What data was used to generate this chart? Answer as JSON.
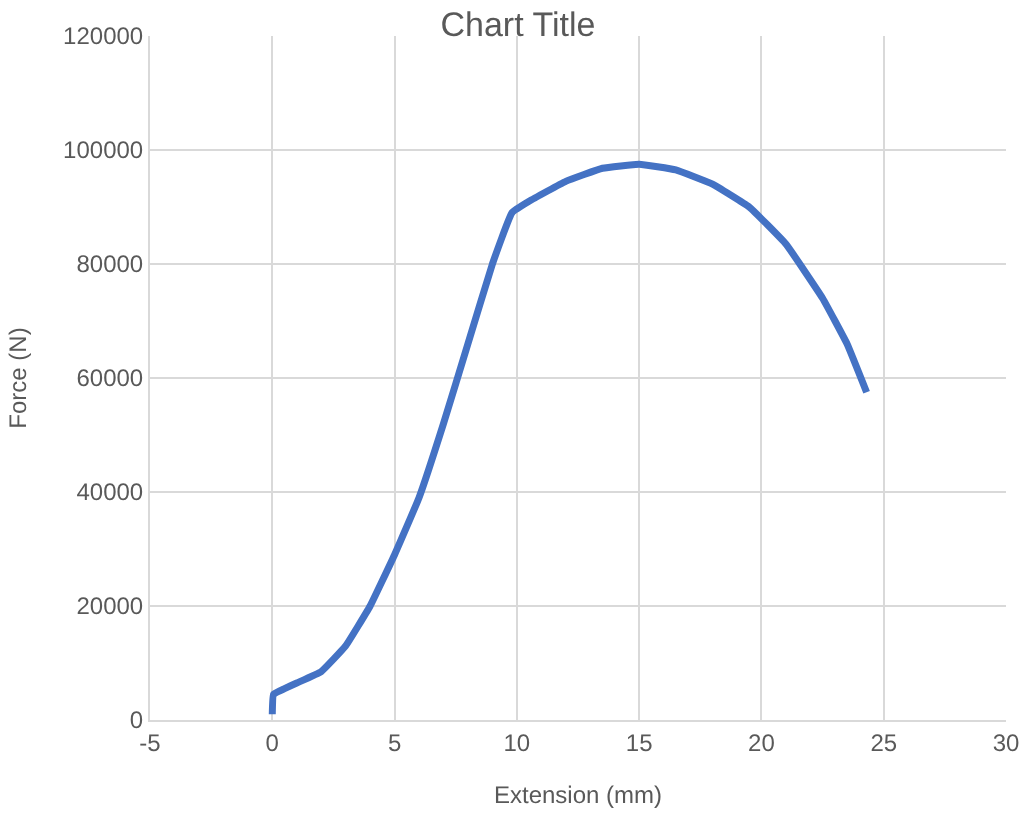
{
  "chart_data": {
    "type": "line",
    "title": "Chart Title",
    "xlabel": "Extension (mm)",
    "ylabel": "Force (N)",
    "xlim": [
      -5,
      30
    ],
    "xticks": [
      -5,
      0,
      5,
      10,
      15,
      20,
      25,
      30
    ],
    "ylim": [
      0,
      120000
    ],
    "yticks": [
      0,
      20000,
      40000,
      60000,
      80000,
      100000,
      120000
    ],
    "grid": true,
    "legend": false,
    "marker": "none",
    "line_style": "solid",
    "series": [
      {
        "color": "#4472c4",
        "x": [
          0,
          0.05,
          0.5,
          1,
          2,
          3,
          4,
          5,
          6,
          7,
          8,
          9,
          9.8,
          10.5,
          12,
          13.5,
          15,
          16.5,
          18,
          19.5,
          21,
          22.5,
          23.5,
          24.3
        ],
        "values": [
          1000,
          4500,
          5500,
          6500,
          8500,
          13000,
          20000,
          29000,
          39000,
          52000,
          66000,
          80000,
          89000,
          91000,
          94500,
          96800,
          97500,
          96500,
          94000,
          90000,
          83500,
          74000,
          66000,
          57500
        ]
      }
    ]
  }
}
